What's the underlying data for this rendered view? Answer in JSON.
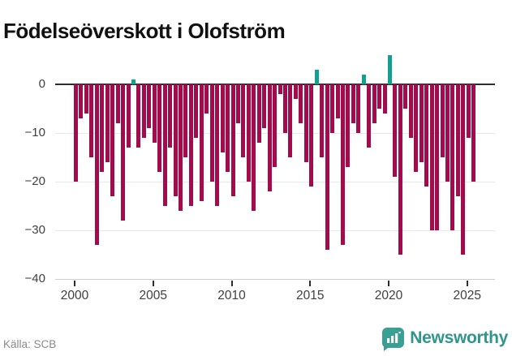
{
  "title": "Födelseöverskott i Olofström",
  "footer": {
    "source": "Källa: SCB"
  },
  "brand": {
    "name": "Newsworthy",
    "icon": "bar-chart-pin-icon",
    "color": "#2f968b"
  },
  "colors": {
    "negative_bar": "#a30b4d",
    "positive_bar": "#12a191",
    "zero_line": "#2d2d2d",
    "gridline": "#e9e9e9",
    "bottom_line": "#cccccc",
    "axis_text": "#3f3f3f"
  },
  "chart_data": {
    "type": "bar",
    "title": "Födelseöverskott i Olofström",
    "start_year": 2000,
    "periods_per_year": 3,
    "values": [
      -20,
      -7,
      -6,
      -15,
      -33,
      -18,
      -16,
      -23,
      -8,
      -28,
      -13,
      1,
      -13,
      -11,
      -9,
      -12,
      -18,
      -25,
      -13,
      -23,
      -26,
      -15,
      -25,
      -11,
      -24,
      -6,
      -20,
      -25,
      -14,
      -18,
      -23,
      -8,
      -15,
      -20,
      -26,
      -12,
      -9,
      -22,
      -17,
      -2,
      -10,
      -15,
      -3,
      -8,
      -16,
      -21,
      3,
      -15,
      -34,
      -10,
      -7,
      -33,
      -17,
      -8,
      -10,
      2,
      -13,
      -8,
      -5,
      -6,
      6,
      -19,
      -35,
      -5,
      -11,
      -18,
      -16,
      -21,
      -30,
      -30,
      -15,
      -20,
      -30,
      -23,
      -35,
      -11,
      -20
    ],
    "y_ticks": [
      0,
      -10,
      -20,
      -30,
      -40
    ],
    "y_tick_labels": [
      "0",
      "−10",
      "−20",
      "−30",
      "−40"
    ],
    "x_ticks": [
      2000,
      2005,
      2010,
      2015,
      2020,
      2025
    ],
    "x_tick_labels": [
      "2000",
      "2005",
      "2010",
      "2015",
      "2020",
      "2025"
    ],
    "ylim": [
      -40,
      7
    ],
    "grid": "horizontal",
    "legend": "none"
  }
}
